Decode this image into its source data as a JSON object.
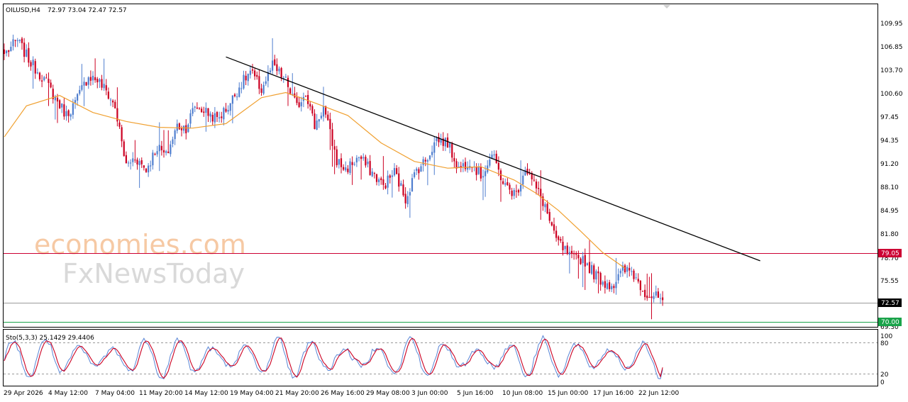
{
  "header": {
    "symbol": "OILUSD,H4",
    "ohlc": "72.97 73.04 72.47 72.57"
  },
  "watermark": {
    "line1": "economies.com",
    "line2": "FxNewsToday"
  },
  "indicator": {
    "label": "Sto(5,3,3) 25.1429 29.4406",
    "axis_labels": [
      "100",
      "80",
      "20",
      "0"
    ]
  },
  "price_axis": {
    "tick_labels": [
      "109.95",
      "106.85",
      "103.70",
      "100.60",
      "97.45",
      "94.35",
      "91.20",
      "88.10",
      "84.95",
      "81.80",
      "78.70",
      "75.55",
      "69.30"
    ],
    "badges": [
      {
        "name": "resistance-level-badge",
        "text": "79.05",
        "color": "#cc0033"
      },
      {
        "name": "current-price-badge",
        "text": "72.57",
        "color": "#000000"
      },
      {
        "name": "support-level-badge",
        "text": "70.00",
        "color": "#1aa34a"
      }
    ]
  },
  "time_axis": {
    "labels": [
      "29 Apr 2026",
      "4 May 12:00",
      "7 May 04:00",
      "11 May 20:00",
      "14 May 12:00",
      "19 May 04:00",
      "21 May 20:00",
      "26 May 16:00",
      "29 May 08:00",
      "3 Jun 00:00",
      "5 Jun 16:00",
      "10 Jun 08:00",
      "15 Jun 00:00",
      "17 Jun 16:00",
      "22 Jun 12:00"
    ]
  },
  "chart_data": {
    "type": "candlestick",
    "symbol": "OILUSD",
    "timeframe": "H4",
    "ylim": [
      68.9,
      112.6
    ],
    "close_path": [
      [
        0,
        105.8
      ],
      [
        6,
        107.6
      ],
      [
        12,
        104.6
      ],
      [
        18,
        102.4
      ],
      [
        24,
        99.4
      ],
      [
        28,
        97.6
      ],
      [
        32,
        99.2
      ],
      [
        38,
        102.9
      ],
      [
        42,
        102.3
      ],
      [
        46,
        100.8
      ],
      [
        50,
        98.6
      ],
      [
        55,
        90.7
      ],
      [
        59,
        91.9
      ],
      [
        64,
        90.2
      ],
      [
        69,
        93.3
      ],
      [
        73,
        92.0
      ],
      [
        78,
        96.1
      ],
      [
        82,
        95.9
      ],
      [
        86,
        98.8
      ],
      [
        90,
        98.2
      ],
      [
        96,
        97.0
      ],
      [
        101,
        98.7
      ],
      [
        106,
        101.4
      ],
      [
        111,
        103.4
      ],
      [
        116,
        101.0
      ],
      [
        121,
        104.2
      ],
      [
        127,
        102.1
      ],
      [
        132,
        98.6
      ],
      [
        136,
        100.8
      ],
      [
        140,
        96.1
      ],
      [
        144,
        98.6
      ],
      [
        150,
        91.4
      ],
      [
        154,
        90.2
      ],
      [
        160,
        91.9
      ],
      [
        166,
        89.8
      ],
      [
        171,
        88.0
      ],
      [
        176,
        89.9
      ],
      [
        181,
        86.3
      ],
      [
        186,
        90.2
      ],
      [
        190,
        91.4
      ],
      [
        195,
        94.3
      ],
      [
        200,
        93.8
      ],
      [
        205,
        90.3
      ],
      [
        210,
        91.5
      ],
      [
        215,
        89.3
      ],
      [
        220,
        92.2
      ],
      [
        226,
        87.9
      ],
      [
        231,
        86.9
      ],
      [
        235,
        90.6
      ],
      [
        240,
        87.6
      ],
      [
        244,
        85.3
      ],
      [
        248,
        81.2
      ],
      [
        252,
        79.6
      ],
      [
        256,
        78.1
      ],
      [
        261,
        78.2
      ],
      [
        266,
        76.2
      ],
      [
        271,
        74.9
      ],
      [
        275,
        74.7
      ],
      [
        279,
        76.6
      ],
      [
        283,
        76.5
      ],
      [
        287,
        74.6
      ],
      [
        290,
        73.4
      ],
      [
        294,
        73.0
      ],
      [
        297,
        72.6
      ]
    ],
    "moving_average": [
      [
        0,
        94.6
      ],
      [
        10,
        98.8
      ],
      [
        25,
        100.2
      ],
      [
        40,
        97.9
      ],
      [
        55,
        96.7
      ],
      [
        70,
        95.9
      ],
      [
        85,
        95.8
      ],
      [
        100,
        96.4
      ],
      [
        116,
        99.9
      ],
      [
        127,
        100.6
      ],
      [
        140,
        99.2
      ],
      [
        155,
        97.5
      ],
      [
        170,
        93.8
      ],
      [
        185,
        91.3
      ],
      [
        200,
        90.4
      ],
      [
        215,
        90.6
      ],
      [
        230,
        88.8
      ],
      [
        240,
        87.0
      ],
      [
        250,
        84.7
      ],
      [
        260,
        81.9
      ],
      [
        270,
        79.0
      ],
      [
        280,
        76.9
      ]
    ],
    "trendline": {
      "from": [
        100,
        105.4
      ],
      "to": [
        341,
        77.9
      ]
    },
    "horizontal_levels": [
      {
        "label": "resistance",
        "value": 79.05,
        "color": "#cc0033"
      },
      {
        "label": "current",
        "value": 72.57,
        "color": "#9a9a9a"
      },
      {
        "label": "support",
        "value": 70.0,
        "color": "#1aa34a"
      }
    ],
    "stochastic": {
      "k": 25.1429,
      "d": 29.4406,
      "levels": [
        80,
        20
      ],
      "ylim": [
        0,
        100
      ]
    },
    "colors": {
      "up": "#4f7ecf",
      "down": "#cc0022",
      "ma": "#f0a030",
      "trendline": "#000000"
    }
  }
}
